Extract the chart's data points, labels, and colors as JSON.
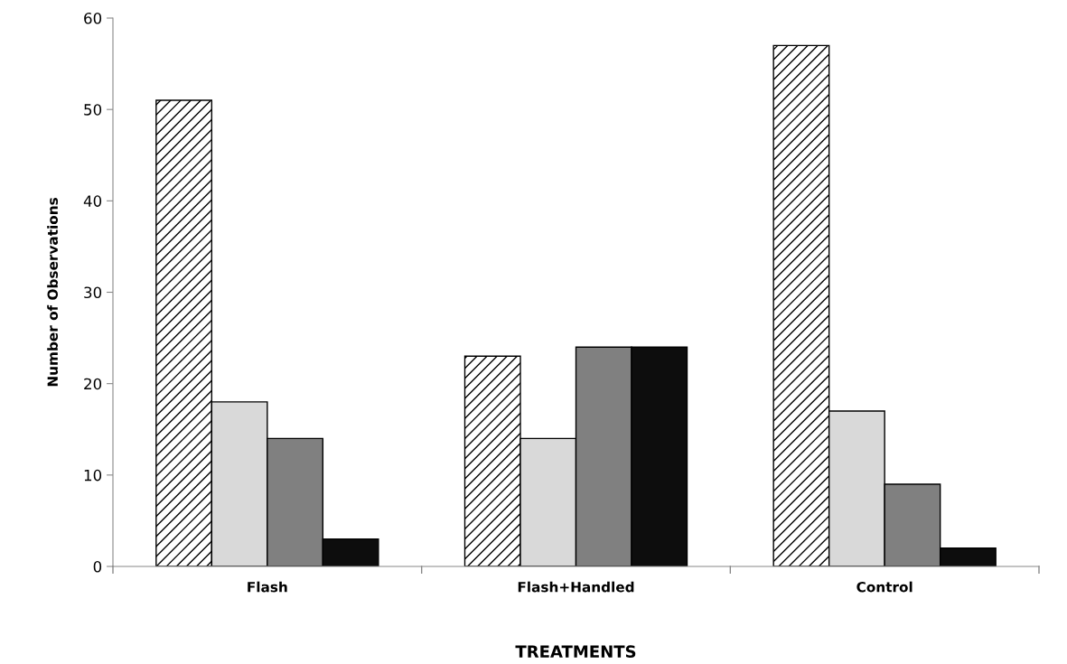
{
  "chart_data": {
    "type": "bar",
    "xlabel": "TREATMENTS",
    "ylabel": "Number of Observations",
    "categories": [
      "Flash",
      "Flash+Handled",
      "Control"
    ],
    "series": [
      {
        "color": "#ffffff",
        "values": [
          51,
          23,
          57
        ]
      },
      {
        "color": "#d9d9d9",
        "values": [
          18,
          14,
          17
        ]
      },
      {
        "color": "#808080",
        "values": [
          14,
          24,
          9
        ]
      },
      {
        "color": "#0d0d0d",
        "values": [
          3,
          24,
          2
        ]
      }
    ],
    "ylim": [
      0,
      60
    ],
    "yticks": [
      0,
      10,
      20,
      30,
      40,
      50,
      60
    ],
    "grid": false,
    "legend": false
  }
}
